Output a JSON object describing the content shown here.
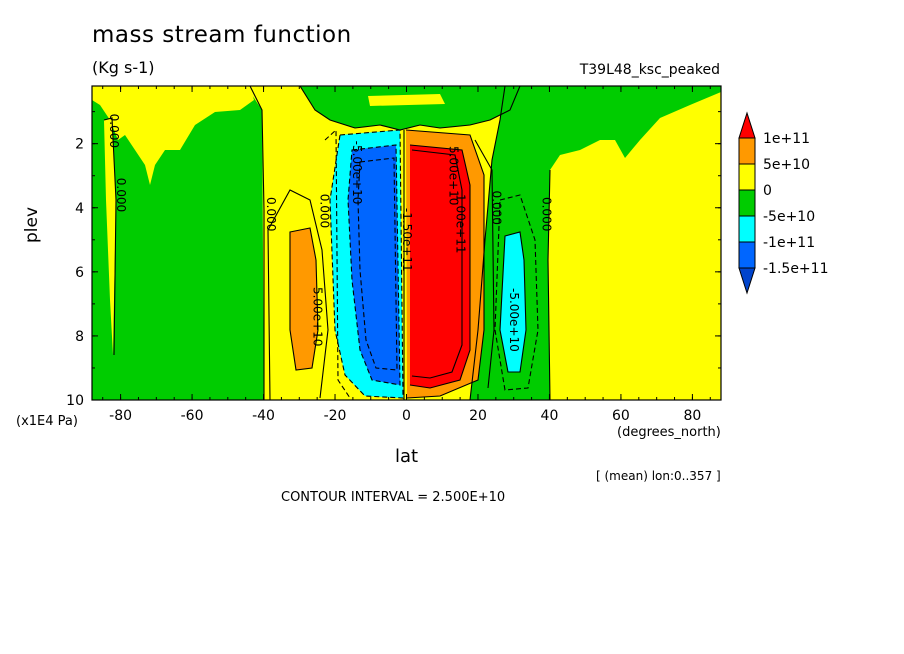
{
  "title": "mass stream function",
  "units": "(Kg s-1)",
  "case_name": "T39L48_ksc_peaked",
  "ylabel": "plev",
  "yunit": "(x1E4 Pa)",
  "xlabel": "lat",
  "xunit": "(degrees_north)",
  "mean_note": "[ (mean) lon:0..357 ]",
  "contour_interval": "CONTOUR INTERVAL = 2.500E+10",
  "colors": {
    "yellow": "#ffff00",
    "green": "#00cc00",
    "cyan": "#00ffff",
    "blue": "#0066ff",
    "orange": "#ff9900",
    "red": "#ff0000",
    "darkblue": "#0044cc"
  },
  "chart_data": {
    "type": "heatmap",
    "subtype": "filled contour",
    "title": "mass stream function",
    "units": "(Kg s-1)",
    "xlabel": "lat",
    "ylabel": "plev",
    "xlim": [
      -88,
      88
    ],
    "ylim": [
      10,
      0.2
    ],
    "x_ticks": [
      "-80",
      "-60",
      "-40",
      "-20",
      "0",
      "20",
      "40",
      "60",
      "80"
    ],
    "x_tick_values": [
      -80,
      -60,
      -40,
      -20,
      0,
      20,
      40,
      60,
      80
    ],
    "y_ticks": [
      "2",
      "4",
      "6",
      "8",
      "10"
    ],
    "y_tick_values": [
      2,
      4,
      6,
      8,
      10
    ],
    "colorbar_labels": [
      "1e+11",
      "5e+10",
      "0",
      "-5e+10",
      "-1e+11",
      "-1.5e+11"
    ],
    "colorbar_levels": [
      100000000000.0,
      50000000000.0,
      0,
      -50000000000.0,
      -100000000000.0,
      -150000000000.0
    ],
    "contour_labels": [
      {
        "text": "0.000",
        "lat": -83,
        "plev": 1.6
      },
      {
        "text": "0.000",
        "lat": -81,
        "plev": 3.6
      },
      {
        "text": "0.000",
        "lat": -39,
        "plev": 4.2
      },
      {
        "text": "0.000",
        "lat": -24,
        "plev": 4.1
      },
      {
        "text": "5.00e+10",
        "lat": -26,
        "plev": 7.4
      },
      {
        "text": "-5.00e+10",
        "lat": -15,
        "plev": 2.9
      },
      {
        "text": "-1.50e+11",
        "lat": -1,
        "plev": 5.0
      },
      {
        "text": "5.00e+10",
        "lat": 12,
        "plev": 3.0
      },
      {
        "text": "1.00e+11",
        "lat": 14,
        "plev": 4.5
      },
      {
        "text": "0.000",
        "lat": 24,
        "plev": 4.0
      },
      {
        "text": "-5.00e+10",
        "lat": 29,
        "plev": 7.5
      },
      {
        "text": "0.000",
        "lat": 38,
        "plev": 4.2
      }
    ]
  }
}
